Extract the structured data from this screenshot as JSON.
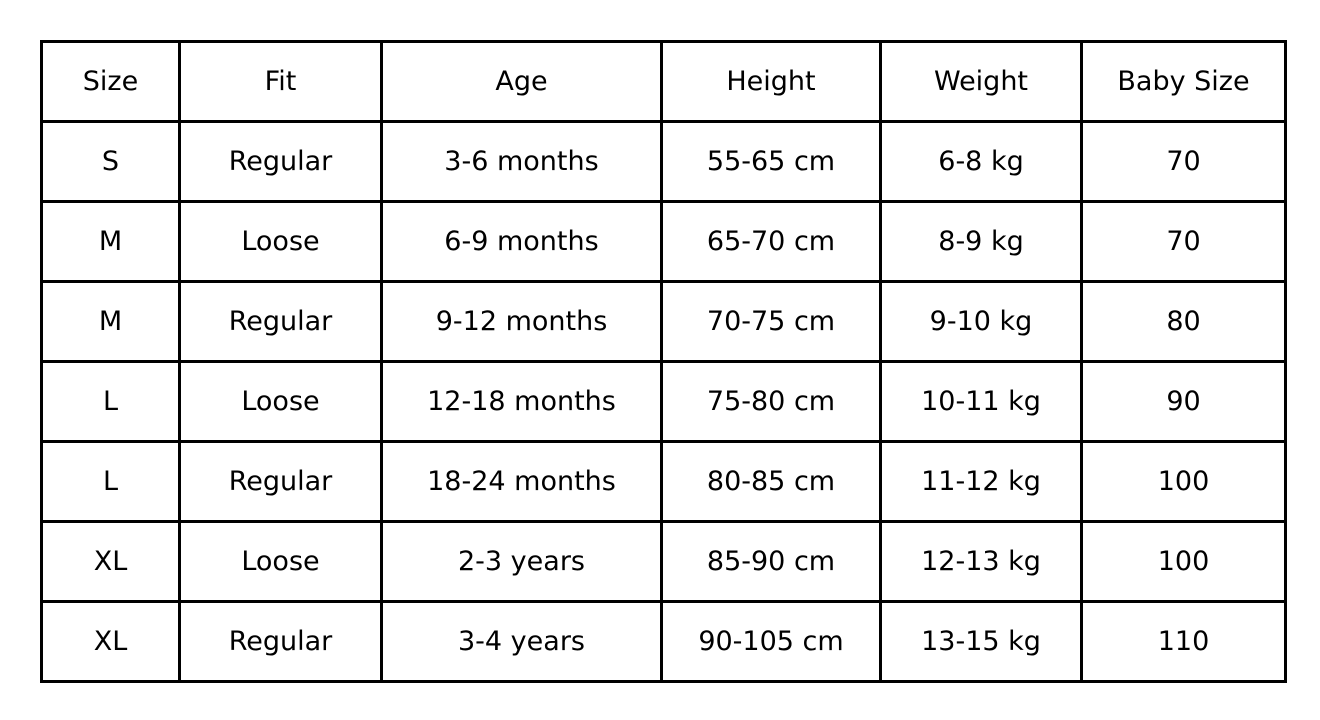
{
  "chart_data": {
    "type": "table",
    "columns": [
      "Size",
      "Fit",
      "Age",
      "Height",
      "Weight",
      "Baby Size"
    ],
    "rows": [
      [
        "S",
        "Regular",
        "3-6 months",
        "55-65 cm",
        "6-8 kg",
        "70"
      ],
      [
        "M",
        "Loose",
        "6-9 months",
        "65-70 cm",
        "8-9 kg",
        "70"
      ],
      [
        "M",
        "Regular",
        "9-12 months",
        "70-75 cm",
        "9-10 kg",
        "80"
      ],
      [
        "L",
        "Loose",
        "12-18 months",
        "75-80 cm",
        "10-11 kg",
        "90"
      ],
      [
        "L",
        "Regular",
        "18-24 months",
        "80-85 cm",
        "11-12 kg",
        "100"
      ],
      [
        "XL",
        "Loose",
        "2-3 years",
        "85-90 cm",
        "12-13 kg",
        "100"
      ],
      [
        "XL",
        "Regular",
        "3-4 years",
        "90-105 cm",
        "13-15 kg",
        "110"
      ]
    ],
    "layout": {
      "grid": "on",
      "legend_position": "none"
    }
  },
  "colors": {
    "border": "#000000",
    "text": "#000000",
    "background": "#ffffff"
  }
}
